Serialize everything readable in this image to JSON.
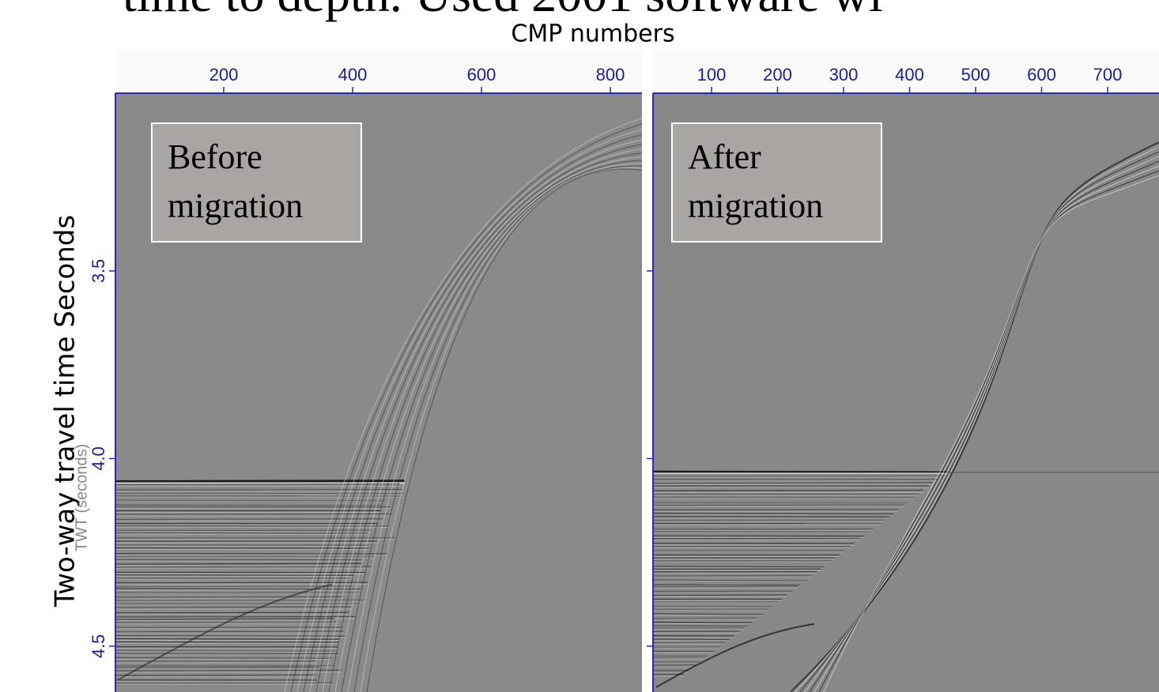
{
  "slide_title": "time to depth. Used 2001 software wi",
  "x_axis_title": "CMP numbers",
  "y_axis_title": "Two-way  travel time Seconds",
  "panels": [
    {
      "label_lines": [
        "Before",
        "migration"
      ],
      "x_ticks": [
        "200",
        "400",
        "600",
        "800"
      ],
      "y_ticks": [
        "3.5",
        "4.0",
        "4.5"
      ],
      "y_axis_label": "TWT (seconds)"
    },
    {
      "label_lines": [
        "After",
        "migration"
      ],
      "x_ticks": [
        "100",
        "200",
        "300",
        "400",
        "500",
        "600",
        "700"
      ]
    }
  ]
}
